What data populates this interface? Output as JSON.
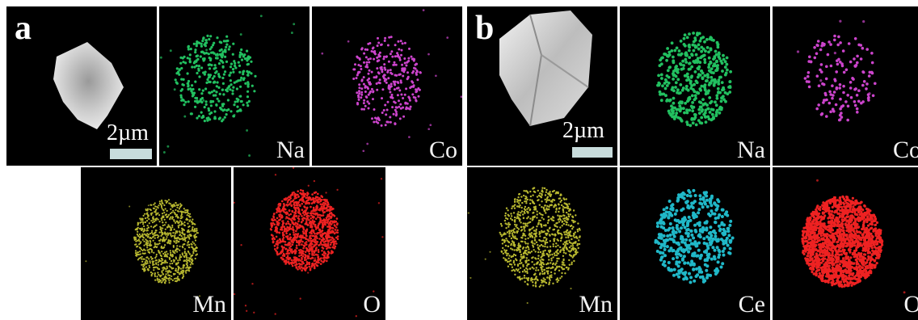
{
  "figure_a": {
    "letter": "a",
    "scale_text": "2µm",
    "elements": [
      "Na",
      "Co",
      "Mn",
      "O"
    ],
    "colors": {
      "Na": "#22c060",
      "Co": "#cc44cc",
      "Mn": "#b8b830",
      "O": "#ee2222"
    }
  },
  "figure_b": {
    "letter": "b",
    "scale_text": "2µm",
    "elements": [
      "Na",
      "Co",
      "Mn",
      "Ce",
      "O"
    ],
    "colors": {
      "Na": "#22c060",
      "Co": "#cc44cc",
      "Mn": "#b8b830",
      "Ce": "#20b8c8",
      "O": "#ee2222"
    }
  }
}
